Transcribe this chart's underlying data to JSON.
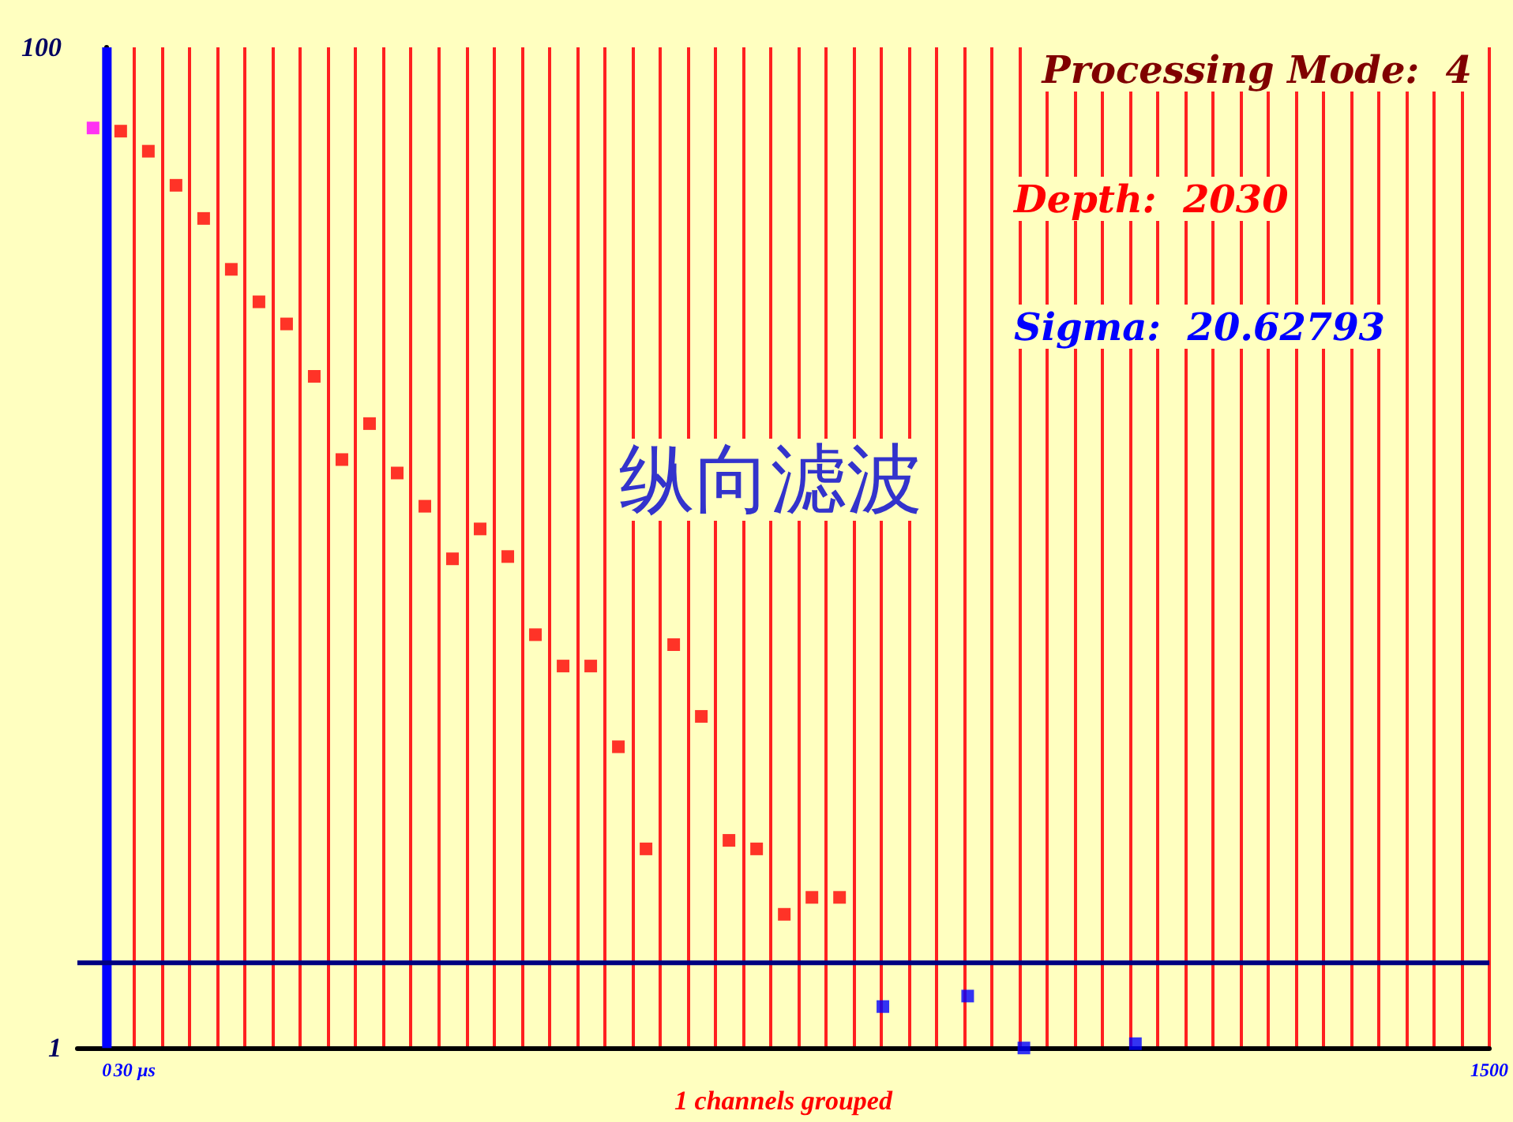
{
  "chart_data": {
    "type": "scatter",
    "xlabel": "1 channels grouped",
    "annotations": [
      "Processing Mode:  4",
      "Depth:  2030",
      "Sigma:  20.62793",
      "纵向滤波"
    ],
    "xlim": [
      -32,
      1500
    ],
    "ylim": [
      1,
      100
    ],
    "log": "y",
    "grid": "x",
    "marker": "square",
    "yticks": [
      1,
      100
    ],
    "xticks": [
      0,
      {
        "value": 30,
        "label": "30 µs"
      },
      {
        "value": 60,
        "label": null
      },
      {
        "value": 90,
        "label": null
      },
      {
        "value": 120,
        "label": null
      },
      {
        "value": 150,
        "label": null
      },
      {
        "value": 180,
        "label": null
      },
      {
        "value": 210,
        "label": null
      },
      {
        "value": 240,
        "label": null
      },
      {
        "value": 270,
        "label": null
      },
      {
        "value": 300,
        "label": null
      },
      {
        "value": 330,
        "label": null
      },
      {
        "value": 360,
        "label": null
      },
      {
        "value": 390,
        "label": null
      },
      {
        "value": 420,
        "label": null
      },
      {
        "value": 450,
        "label": null
      },
      {
        "value": 480,
        "label": null
      },
      {
        "value": 510,
        "label": null
      },
      {
        "value": 540,
        "label": null
      },
      {
        "value": 570,
        "label": null
      },
      {
        "value": 600,
        "label": null
      },
      {
        "value": 630,
        "label": null
      },
      {
        "value": 660,
        "label": null
      },
      {
        "value": 690,
        "label": null
      },
      {
        "value": 720,
        "label": null
      },
      {
        "value": 750,
        "label": null
      },
      {
        "value": 780,
        "label": null
      },
      {
        "value": 810,
        "label": null
      },
      {
        "value": 840,
        "label": null
      },
      {
        "value": 870,
        "label": null
      },
      {
        "value": 900,
        "label": null
      },
      {
        "value": 930,
        "label": null
      },
      {
        "value": 960,
        "label": null
      },
      {
        "value": 990,
        "label": null
      },
      {
        "value": 1020,
        "label": null
      },
      {
        "value": 1050,
        "label": null
      },
      {
        "value": 1080,
        "label": null
      },
      {
        "value": 1110,
        "label": null
      },
      {
        "value": 1140,
        "label": null
      },
      {
        "value": 1170,
        "label": null
      },
      {
        "value": 1200,
        "label": null
      },
      {
        "value": 1230,
        "label": null
      },
      {
        "value": 1260,
        "label": null
      },
      {
        "value": 1290,
        "label": null
      },
      {
        "value": 1320,
        "label": null
      },
      {
        "value": 1350,
        "label": null
      },
      {
        "value": 1380,
        "label": null
      },
      {
        "value": 1410,
        "label": null
      },
      {
        "value": 1440,
        "label": null
      },
      {
        "value": 1470,
        "label": null
      },
      1500
    ],
    "ref_lines": [
      {
        "axis": "x",
        "value": 0,
        "color": "#0000ff"
      },
      {
        "axis": "y",
        "value": 1.48,
        "color": "#000080"
      }
    ],
    "series": [
      {
        "color": "#ff00ff",
        "x": [
          -15
        ],
        "values": [
          69
        ]
      },
      {
        "color": "#ff0000",
        "x": [
          15,
          45,
          75,
          105,
          135,
          165,
          195,
          225,
          255,
          285,
          315,
          345,
          375,
          405,
          435,
          465,
          495,
          525,
          555,
          585,
          615,
          645,
          675,
          705,
          735,
          765,
          795
        ],
        "values": [
          68,
          62,
          53,
          45.5,
          36,
          31,
          28,
          22,
          15,
          17.7,
          14.1,
          12.1,
          9.5,
          10.9,
          9.6,
          6.7,
          5.8,
          5.8,
          4.0,
          2.5,
          6.4,
          4.6,
          2.6,
          2.5,
          1.85,
          2.0,
          2.0
        ]
      },
      {
        "color": "#0000ff",
        "x": [
          842,
          934,
          995,
          1116
        ],
        "values": [
          1.21,
          1.27,
          1.0,
          1.02
        ]
      }
    ]
  }
}
